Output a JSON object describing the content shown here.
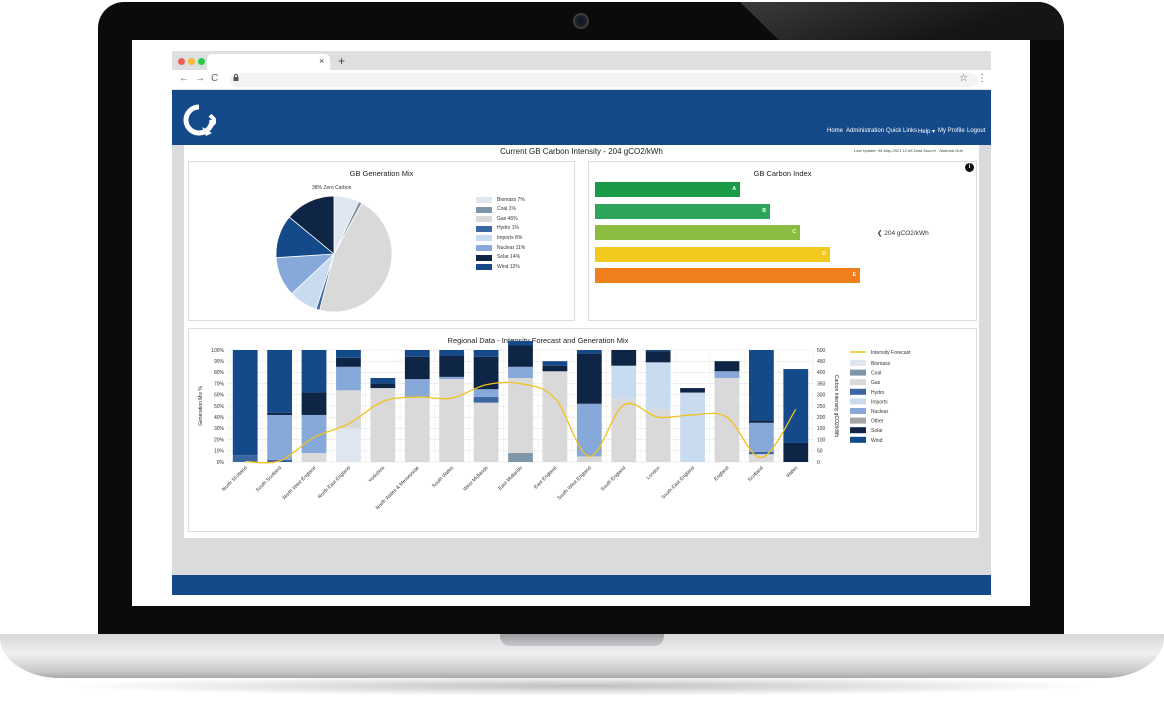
{
  "browser": {
    "new_tab_label": "+",
    "tab_close_label": "×",
    "nav": {
      "back": "←",
      "forward": "→",
      "reload": "C"
    },
    "lock_icon": "lock-icon",
    "star": "☆",
    "menu": "⋮"
  },
  "header": {
    "nav_items": [
      "Home",
      "Administration",
      "Quick Links",
      "Help ▾",
      "My Profile",
      "Logout"
    ],
    "brand_color": "#154a8a"
  },
  "page": {
    "title": "Current GB Carbon Intensity - 204 gCO2/kWh",
    "last_update": "Last Update: 06-May-2021 12:48 Data Source - National Grid"
  },
  "generation_mix": {
    "title": "GB Generation Mix",
    "annotation": "38% Zero Carbon",
    "legend": [
      {
        "label": "Biomass 7%",
        "value": 7,
        "color": "#dfe6f0"
      },
      {
        "label": "Coal 1%",
        "value": 1,
        "color": "#7f96a9"
      },
      {
        "label": "Gas 46%",
        "value": 46,
        "color": "#d9d9d9"
      },
      {
        "label": "Hydro 1%",
        "value": 1,
        "color": "#3c65a3"
      },
      {
        "label": "Imports 8%",
        "value": 8,
        "color": "#c9dbee"
      },
      {
        "label": "Nuclear 11%",
        "value": 11,
        "color": "#87a9d9"
      },
      {
        "label": "Solar 14%",
        "value": 14,
        "color": "#0e2545"
      },
      {
        "label": "Wind 12%",
        "value": 12,
        "color": "#14498a"
      }
    ]
  },
  "carbon_index": {
    "title": "GB Carbon Index",
    "info_icon": "i",
    "pointer": "❮",
    "value_label": "204 gCO2/kWh",
    "bands": [
      {
        "label": "A",
        "level": 0.29,
        "color": "#1b9a4a"
      },
      {
        "label": "B",
        "level": 0.35,
        "color": "#2fa55b"
      },
      {
        "label": "C",
        "level": 0.41,
        "color": "#8bbb41"
      },
      {
        "label": "D",
        "level": 0.47,
        "color": "#f4c91e"
      },
      {
        "label": "E",
        "level": 0.53,
        "color": "#ef7f1a"
      }
    ]
  },
  "regional": {
    "title": "Regional Data - Intensity Forecast and Generation Mix",
    "y_left_label": "Generation Mix %",
    "y_right_label": "Carbon Intensity gCO2/kWh",
    "legend_line": "Intensity Forecast"
  },
  "chart_data": {
    "type": "bar",
    "stacked": true,
    "categories": [
      "North Scotland",
      "South Scotland",
      "North West England",
      "North East England",
      "Yorkshire",
      "North Wales & Merseyside",
      "South Wales",
      "West Midlands",
      "East Midlands",
      "East England",
      "South West England",
      "South England",
      "London",
      "South East England",
      "England",
      "Scotland",
      "Wales"
    ],
    "ylim_left": [
      0,
      100
    ],
    "ylim_right": [
      0,
      500
    ],
    "yticks_left": [
      "100%",
      "90%",
      "80%",
      "70%",
      "60%",
      "50%",
      "40%",
      "30%",
      "20%",
      "10%",
      "0%"
    ],
    "yticks_right": [
      "500",
      "450",
      "400",
      "350",
      "300",
      "250",
      "200",
      "150",
      "100",
      "50",
      "0"
    ],
    "series": [
      {
        "name": "Biomass",
        "color": "#dfe6f0",
        "values": [
          0,
          0,
          0,
          30,
          0,
          0,
          0,
          0,
          0,
          0,
          0,
          0,
          0,
          0,
          0,
          0,
          0
        ]
      },
      {
        "name": "Coal",
        "color": "#7f96a9",
        "values": [
          0,
          0,
          0,
          0,
          0,
          0,
          0,
          0,
          8,
          0,
          0,
          0,
          0,
          0,
          0,
          0,
          0
        ]
      },
      {
        "name": "Gas",
        "color": "#d9d9d9",
        "values": [
          0,
          0,
          8,
          34,
          66,
          58,
          74,
          53,
          67,
          81,
          5,
          56,
          47,
          0,
          75,
          7,
          0
        ]
      },
      {
        "name": "Hydro",
        "color": "#3c65a3",
        "values": [
          6,
          2,
          0,
          0,
          0,
          0,
          0,
          5,
          0,
          0,
          0,
          0,
          0,
          0,
          0,
          2,
          0
        ]
      },
      {
        "name": "Imports",
        "color": "#c9dbee",
        "values": [
          0,
          0,
          0,
          0,
          0,
          0,
          0,
          0,
          0,
          0,
          0,
          30,
          42,
          62,
          0,
          0,
          0
        ]
      },
      {
        "name": "Nuclear",
        "color": "#87a9d9",
        "values": [
          0,
          40,
          34,
          21,
          0,
          16,
          2,
          7,
          10,
          0,
          47,
          0,
          0,
          0,
          6,
          26,
          0
        ]
      },
      {
        "name": "Other",
        "color": "#a5a5a5",
        "values": [
          0,
          0,
          0,
          0,
          0,
          0,
          0,
          0,
          0,
          0,
          0,
          0,
          0,
          0,
          0,
          0,
          0
        ]
      },
      {
        "name": "Solar",
        "color": "#0e2545",
        "values": [
          0,
          2,
          20,
          8,
          4,
          20,
          19,
          29,
          19,
          5,
          45,
          14,
          10,
          4,
          9,
          2,
          17
        ]
      },
      {
        "name": "Wind",
        "color": "#14498a",
        "values": [
          94,
          56,
          38,
          7,
          5,
          6,
          5,
          6,
          4,
          4,
          3,
          0,
          1,
          0,
          0,
          63,
          66
        ]
      }
    ],
    "line": {
      "name": "Intensity Forecast",
      "color": "#f2c11d",
      "values": [
        2,
        5,
        110,
        170,
        270,
        290,
        285,
        345,
        350,
        285,
        25,
        255,
        200,
        210,
        200,
        20,
        235
      ]
    }
  }
}
